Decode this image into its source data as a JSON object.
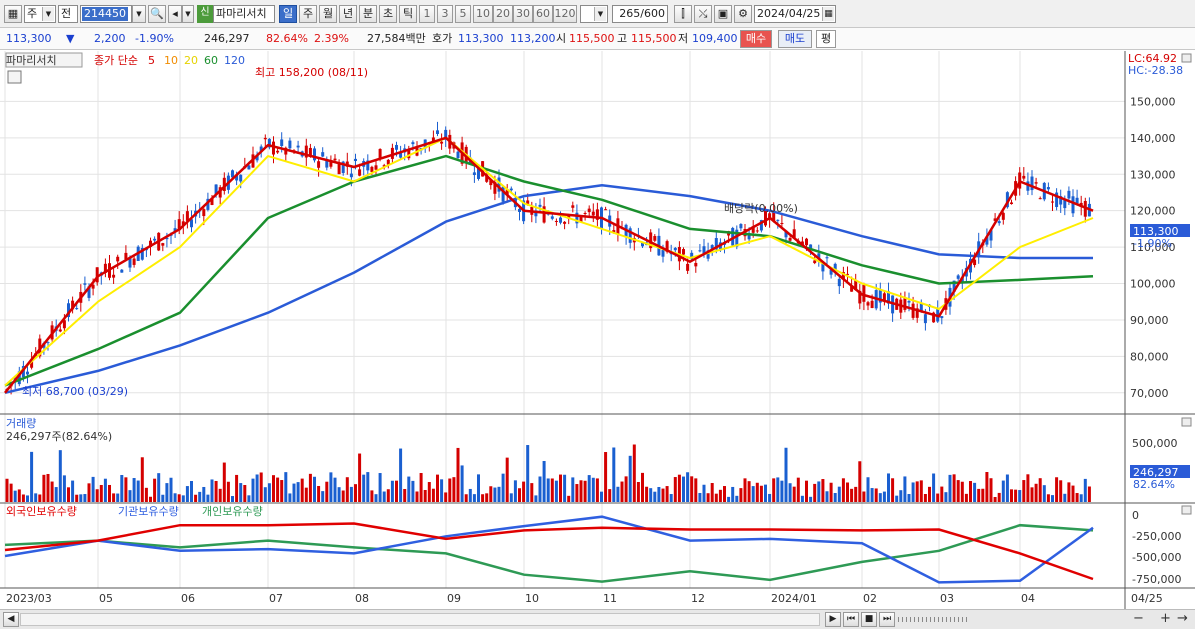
{
  "toolbar": {
    "market_type": "주",
    "compare": "전",
    "code": "214450",
    "new_tag": "신",
    "stock_name": "파마리서치",
    "periods": [
      "일",
      "주",
      "월",
      "년",
      "분",
      "초",
      "틱"
    ],
    "active_period": "일",
    "intervals": [
      "1",
      "3",
      "5",
      "10",
      "20",
      "30",
      "60",
      "120"
    ],
    "count": "265",
    "count_total": "/600",
    "date": "2024/04/25"
  },
  "quote": {
    "price": "113,300",
    "arrow": "▼",
    "change": "2,200",
    "change_pct": "-1.90%",
    "volume": "246,297",
    "volume_ratio": "82.64%",
    "turnover": "2.39%",
    "amount": "27,584백만",
    "bid_label": "호가",
    "bid1": "113,300",
    "bid2": "113,200",
    "open_label": "시",
    "open": "115,500",
    "high_label": "고",
    "high": "115,500",
    "low_label": "저",
    "low": "109,400",
    "buy_label": "매수",
    "sell_label": "매도",
    "avg_label": "평"
  },
  "price_panel": {
    "title": "파마리서치",
    "ma_label": "종가 단순",
    "ma_periods": [
      "5",
      "10",
      "20",
      "60",
      "120"
    ],
    "lc": "LC:64.92",
    "hc": "HC:-28.38",
    "max_note": "최고 158,200 (08/11)",
    "min_note": "최저 68,700 (03/29)",
    "dividend_note": "배당락(0.00%)",
    "last_price_tag": "113,300",
    "last_pct_tag": "-1.90%",
    "y_ticks": [
      "150,000",
      "140,000",
      "130,000",
      "120,000",
      "110,000",
      "100,000",
      "90,000",
      "80,000",
      "70,000"
    ]
  },
  "volume_panel": {
    "title": "거래량",
    "value_label": "246,297주(82.64%)",
    "y_ticks": [
      "500,000",
      "250,000"
    ],
    "last_tag": "246,297",
    "pct_tag": "82.64%"
  },
  "holdings_panel": {
    "series": [
      "외국인보유수량",
      "기관보유수량",
      "개인보유수량"
    ],
    "y_ticks": [
      "0",
      "-250,000",
      "-500,000",
      "-750,000"
    ]
  },
  "x_axis": [
    "2023/03",
    "05",
    "06",
    "07",
    "08",
    "09",
    "10",
    "11",
    "12",
    "2024/01",
    "02",
    "03",
    "04",
    "04/25"
  ],
  "colors": {
    "ma5": "#d40000",
    "ma10": "#f08c00",
    "ma20": "#ffee00",
    "ma60": "#1a8f2e",
    "ma120": "#2a5bd7",
    "up": "#d40000",
    "down": "#1a5fd0",
    "foreign": "#e00000",
    "institution": "#2f5fe0",
    "individual": "#2e9a55"
  },
  "chart_data": {
    "type": "candlestick",
    "x_range": [
      "2023/03",
      "2024/04/25"
    ],
    "ylim": [
      65000,
      160000
    ],
    "ma_points": {
      "x": [
        "2023/03",
        "05",
        "06",
        "07",
        "08",
        "09",
        "10",
        "11",
        "12",
        "2024/01",
        "02",
        "03",
        "04",
        "04/25"
      ],
      "ma5": [
        70000,
        102000,
        115000,
        138000,
        132000,
        140000,
        120000,
        118000,
        106000,
        118000,
        97000,
        91000,
        128000,
        120000
      ],
      "ma20": [
        72000,
        95000,
        110000,
        135000,
        128000,
        140000,
        122000,
        115000,
        107000,
        113000,
        100000,
        93000,
        110000,
        118000
      ],
      "ma60": [
        72000,
        82000,
        92000,
        118000,
        128000,
        135000,
        128000,
        123000,
        115000,
        113000,
        105000,
        100000,
        101000,
        102000
      ],
      "ma120": [
        70000,
        76000,
        83000,
        92000,
        103000,
        117000,
        124000,
        127000,
        124000,
        120000,
        113000,
        108000,
        107000,
        107000
      ]
    }
  }
}
